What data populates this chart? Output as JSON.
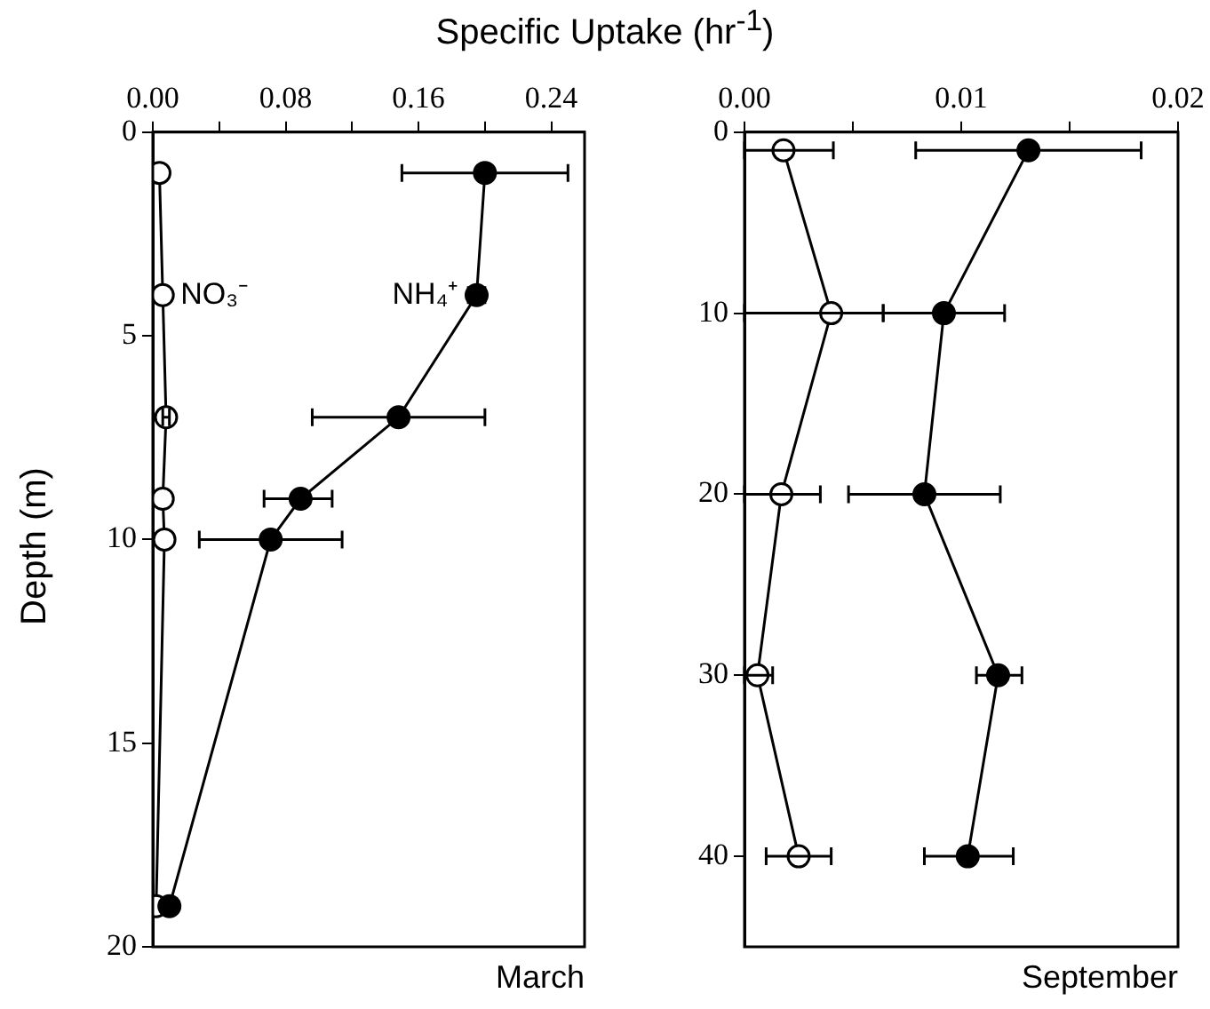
{
  "chart_data": [
    {
      "type": "line",
      "xlabel": "Specific Uptake (hr$^{-1}$)",
      "ylabel": "Depth (m)",
      "annotations": [
        "March"
      ],
      "marker": "circle",
      "line_style": "solid",
      "legend": false,
      "grid": false,
      "xlim": [
        0,
        0.26
      ],
      "xticks": [
        {
          "value": 0,
          "label": "0.00"
        },
        {
          "value": 0.04,
          "label": null
        },
        {
          "value": 0.08,
          "label": "0.08"
        },
        {
          "value": 0.12,
          "label": null
        },
        {
          "value": 0.16,
          "label": "0.16"
        },
        {
          "value": 0.2,
          "label": null
        },
        {
          "value": 0.24,
          "label": "0.24"
        }
      ],
      "ylim": [
        20,
        0
      ],
      "yticks": [
        0,
        5,
        10,
        15,
        20
      ],
      "series": [
        {
          "name": "NO₃⁻",
          "color": "#ffffff",
          "x": [
            0.004,
            0.006,
            0.008,
            0.006,
            0.007,
            0.002
          ],
          "values": [
            1,
            4,
            7,
            9,
            10,
            19
          ],
          "xerrors": [
            null,
            null,
            [
              0.006,
              0.01
            ],
            null,
            null,
            null
          ]
        },
        {
          "name": "NH₄⁺",
          "color": "#000000",
          "x": [
            0.2,
            0.195,
            0.148,
            0.089,
            0.071,
            0.01
          ],
          "values": [
            1,
            4,
            7,
            9,
            10,
            19
          ],
          "xerrors": [
            [
              0.15,
              0.25
            ],
            [
              0.19,
              0.2
            ],
            [
              0.096,
              0.2
            ],
            [
              0.067,
              0.108
            ],
            [
              0.028,
              0.114
            ],
            null
          ]
        }
      ]
    },
    {
      "type": "line",
      "annotations": [
        "September"
      ],
      "marker": "circle",
      "line_style": "solid",
      "legend": false,
      "grid": false,
      "xlim": [
        0,
        0.02
      ],
      "xticks": [
        {
          "value": 0,
          "label": "0.00"
        },
        {
          "value": 0.005,
          "label": null
        },
        {
          "value": 0.01,
          "label": "0.01"
        },
        {
          "value": 0.015,
          "label": null
        },
        {
          "value": 0.02,
          "label": "0.02"
        }
      ],
      "ylim": [
        45,
        0
      ],
      "yticks": [
        0,
        10,
        20,
        30,
        40
      ],
      "series": [
        {
          "color": "#ffffff",
          "x": [
            0.0018,
            0.004,
            0.0017,
            0.0006,
            0.0025
          ],
          "values": [
            1,
            10,
            20,
            30,
            40
          ],
          "xerrors": [
            [
              0,
              0.0041
            ],
            [
              0,
              0.0064
            ],
            [
              0,
              0.0035
            ],
            [
              0,
              0.0013
            ],
            [
              0.001,
              0.004
            ]
          ]
        },
        {
          "color": "#000000",
          "x": [
            0.0131,
            0.0092,
            0.0083,
            0.0117,
            0.0103
          ],
          "values": [
            1,
            10,
            20,
            30,
            40
          ],
          "xerrors": [
            [
              0.0079,
              0.0183
            ],
            [
              0.0064,
              0.012
            ],
            [
              0.0048,
              0.0118
            ],
            [
              0.0107,
              0.0128
            ],
            [
              0.0083,
              0.0124
            ]
          ]
        }
      ]
    }
  ]
}
